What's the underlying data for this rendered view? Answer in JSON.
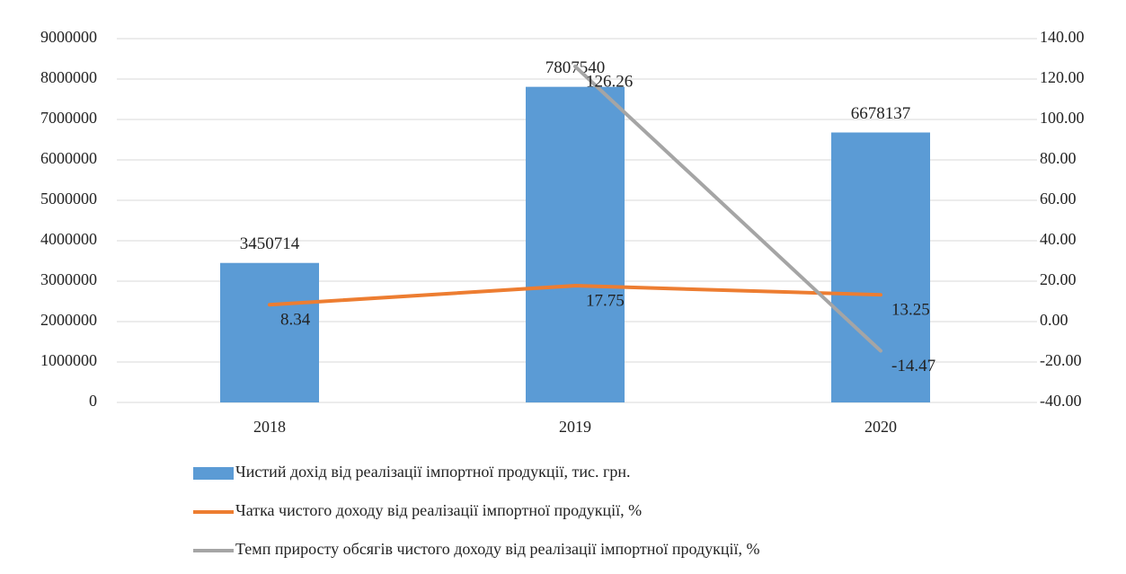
{
  "chart_data": {
    "type": "bar-line",
    "categories": [
      "2018",
      "2019",
      "2020"
    ],
    "series": [
      {
        "name": "Чистий дохід від реалізації імпортної продукції,  тис. грн.",
        "type": "bar",
        "color": "#5b9bd5",
        "values": [
          3450714,
          7807540,
          6678137
        ]
      },
      {
        "name": "Чатка чистого доходу від реалізації імпортної продукції, %",
        "type": "line",
        "axis": "y2",
        "color": "#ed7d31",
        "values": [
          8.34,
          17.75,
          13.25
        ]
      },
      {
        "name": "Темп приросту обсягів чистого доходу від реалізації імпортної продукції, %",
        "type": "line",
        "axis": "y2",
        "color": "#a5a5a5",
        "values": [
          null,
          126.26,
          -14.47
        ]
      }
    ],
    "ylim": [
      0,
      9000000
    ],
    "yticks": [
      0,
      1000000,
      2000000,
      3000000,
      4000000,
      5000000,
      6000000,
      7000000,
      8000000,
      9000000
    ],
    "y2lim": [
      -40,
      140
    ],
    "y2ticks": [
      {
        "value": -40,
        "label": "-40.00"
      },
      {
        "value": -20,
        "label": "-20.00"
      },
      {
        "value": 0,
        "label": "0.00"
      },
      {
        "value": 20,
        "label": "20.00"
      },
      {
        "value": 40,
        "label": "40.00"
      },
      {
        "value": 60,
        "label": "60.00"
      },
      {
        "value": 80,
        "label": "80.00"
      },
      {
        "value": 100,
        "label": "100.00"
      },
      {
        "value": 120,
        "label": "120.00"
      },
      {
        "value": 140,
        "label": "140.00"
      }
    ],
    "grid": true
  }
}
